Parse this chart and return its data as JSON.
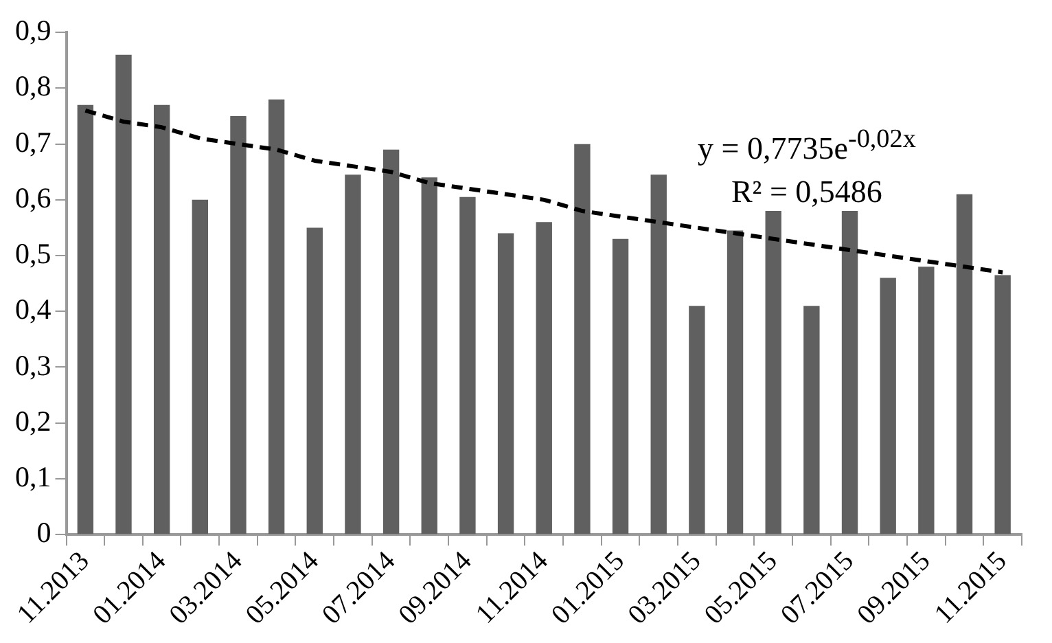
{
  "chart_data": {
    "type": "bar",
    "categories": [
      "11.2013",
      null,
      "01.2014",
      null,
      "03.2014",
      null,
      "05.2014",
      null,
      "07.2014",
      null,
      "09.2014",
      null,
      "11.2014",
      null,
      "01.2015",
      null,
      "03.2015",
      null,
      "05.2015",
      null,
      "07.2015",
      null,
      "09.2015",
      null,
      "11.2015"
    ],
    "series": [
      {
        "color": "#606060",
        "values": [
          0.77,
          0.86,
          0.77,
          0.6,
          0.75,
          0.78,
          0.55,
          0.645,
          0.69,
          0.64,
          0.605,
          0.54,
          0.56,
          0.7,
          0.53,
          0.645,
          0.41,
          0.545,
          0.58,
          0.41,
          0.58,
          0.46,
          0.48,
          0.61,
          0.465
        ]
      },
      {
        "type": "line",
        "color": "#000000",
        "line_style": "dashed",
        "marker": "none",
        "values": [
          0.76,
          0.74,
          0.73,
          0.71,
          0.7,
          0.69,
          0.67,
          0.66,
          0.65,
          0.63,
          0.62,
          0.61,
          0.6,
          0.58,
          0.57,
          0.56,
          0.55,
          0.54,
          0.53,
          0.52,
          0.51,
          0.5,
          0.49,
          0.48,
          0.47
        ]
      }
    ],
    "ylim": [
      0,
      0.9
    ],
    "yticks": [
      0,
      {
        "value": 0.1,
        "label": "0,1"
      },
      {
        "value": 0.2,
        "label": "0,2"
      },
      {
        "value": 0.3,
        "label": "0,3"
      },
      {
        "value": 0.4,
        "label": "0,4"
      },
      {
        "value": 0.5,
        "label": "0,5"
      },
      {
        "value": 0.6,
        "label": "0,6"
      },
      {
        "value": 0.7,
        "label": "0,7"
      },
      {
        "value": 0.8,
        "label": "0,8"
      },
      {
        "value": 0.9,
        "label": "0,9"
      }
    ],
    "annotations": [
      "y = 0,7735e$^{-0,02x}$",
      "R² = 0,5486"
    ],
    "grid": false,
    "legend": false
  }
}
